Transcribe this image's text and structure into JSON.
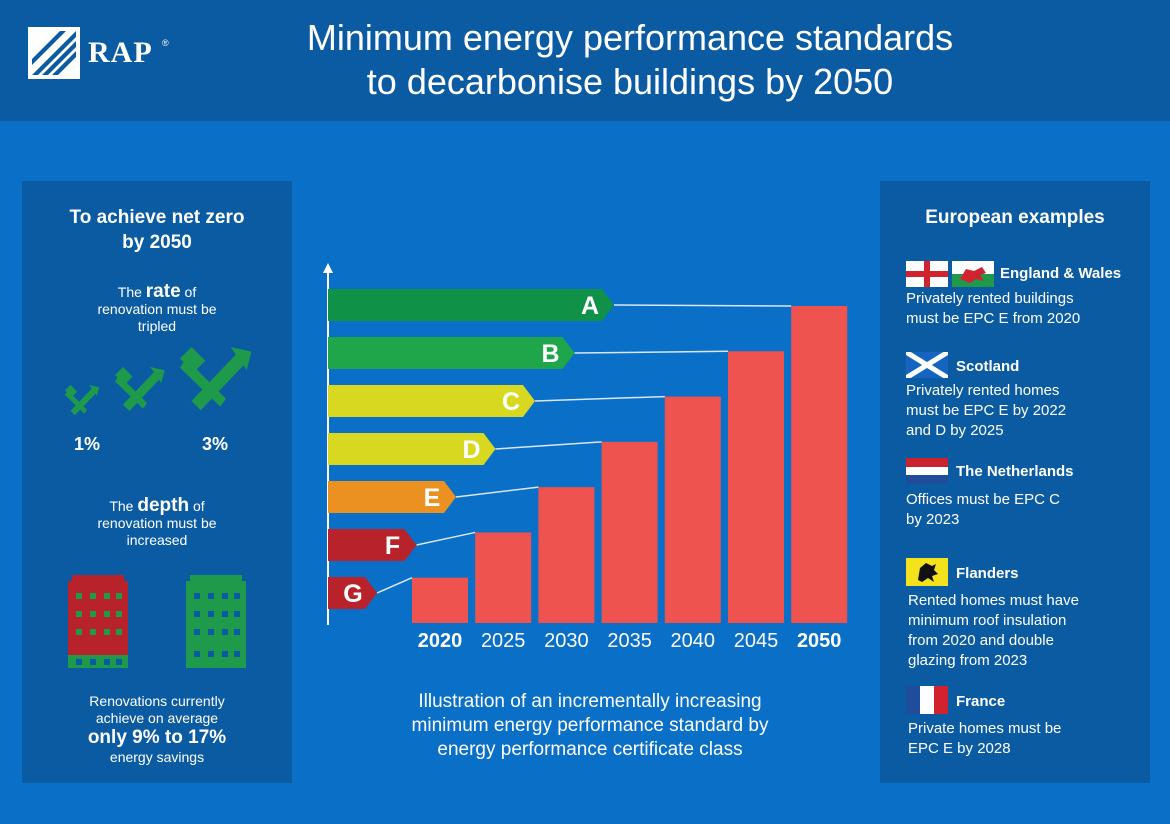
{
  "header": {
    "logo_text": "RAP",
    "logo_reg": "®",
    "title_line1": "Minimum energy performance standards",
    "title_line2": "to decarbonise buildings by 2050"
  },
  "left_panel": {
    "title_line1": "To achieve net zero",
    "title_line2": "by 2050",
    "rate_pre": "The ",
    "rate_word": "rate",
    "rate_post": " of",
    "rate_line2": "renovation must be",
    "rate_line3": "tripled",
    "pct_low": "1%",
    "pct_high": "3%",
    "depth_pre": "The ",
    "depth_word": "depth",
    "depth_post": " of",
    "depth_line2": "renovation must be",
    "depth_line3": "increased",
    "reno_line1": "Renovations currently",
    "reno_line2": "achieve on average",
    "reno_line3": "only 9% to 17%",
    "reno_line4": "energy savings"
  },
  "chart_data": {
    "type": "bar",
    "categories": [
      "2020",
      "2025",
      "2030",
      "2035",
      "2040",
      "2045",
      "2050"
    ],
    "values": [
      1,
      2,
      3,
      4,
      5,
      6,
      7
    ],
    "bold_categories": [
      "2020",
      "2050"
    ],
    "bar_color": "#ef5350",
    "bands": [
      {
        "label": "A",
        "color": "#0f9147",
        "year": "2050"
      },
      {
        "label": "B",
        "color": "#1fa54a",
        "year": "2045"
      },
      {
        "label": "C",
        "color": "#d8d820",
        "year": "2040"
      },
      {
        "label": "D",
        "color": "#d8d820",
        "year": "2035"
      },
      {
        "label": "E",
        "color": "#ea9121",
        "year": "2030"
      },
      {
        "label": "F",
        "color": "#b8222b",
        "year": "2025"
      },
      {
        "label": "G",
        "color": "#b8222b",
        "year": "2020"
      }
    ]
  },
  "caption": {
    "line1": "Illustration of an incrementally increasing",
    "line2": "minimum energy performance standard by",
    "line3": "energy performance certificate class"
  },
  "right_panel": {
    "title": "European examples",
    "examples": [
      {
        "name": "England & Wales",
        "desc1": "Privately rented buildings",
        "desc2": "must be EPC E from 2020",
        "desc3": "",
        "desc4": ""
      },
      {
        "name": "Scotland",
        "desc1": "Privately rented homes",
        "desc2": "must be EPC E by 2022",
        "desc3": "and D by 2025",
        "desc4": ""
      },
      {
        "name": "The Netherlands",
        "desc1": "Offices must be EPC C",
        "desc2": "by 2023",
        "desc3": "",
        "desc4": ""
      },
      {
        "name": "Flanders",
        "desc1": "Rented homes must have",
        "desc2": "minimum roof insulation",
        "desc3": "from 2020 and double",
        "desc4": "glazing from 2023"
      },
      {
        "name": "France",
        "desc1": "Private homes must be",
        "desc2": "EPC E by 2028",
        "desc3": "",
        "desc4": ""
      }
    ]
  },
  "colors": {
    "background": "#0a6fc6",
    "panel": "#0b5ba3",
    "icon_green": "#1f9a4a",
    "building_red": "#b8222b"
  }
}
